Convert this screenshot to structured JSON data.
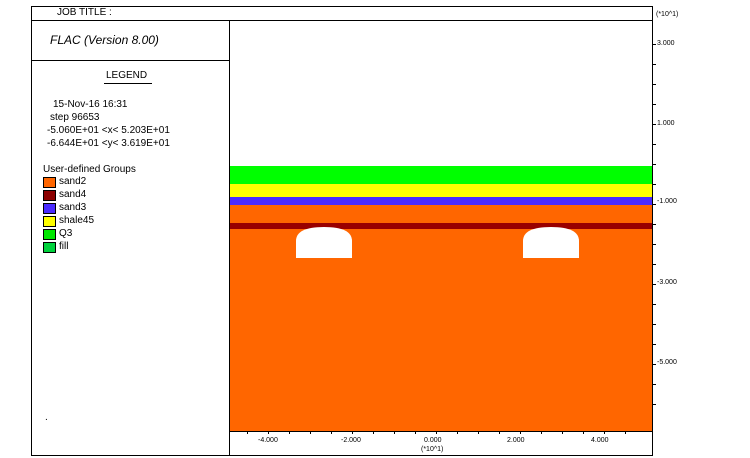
{
  "header": {
    "job_title_label": "JOB TITLE :",
    "units_top": "(*10^1)"
  },
  "program": {
    "title": "FLAC (Version 8.00)"
  },
  "legend": {
    "heading": "LEGEND",
    "date_time": "15-Nov-16  16:31",
    "step": "step    96653",
    "x_range": "-5.060E+01 <x<  5.203E+01",
    "y_range": "-6.644E+01 <y<  3.619E+01",
    "groups_heading": "User-defined Groups",
    "groups": [
      {
        "name": "sand2",
        "color": "#ff6600"
      },
      {
        "name": "sand4",
        "color": "#8b0000"
      },
      {
        "name": "sand3",
        "color": "#4a2bff"
      },
      {
        "name": "shale45",
        "color": "#ffff00"
      },
      {
        "name": "Q3",
        "color": "#00e600"
      },
      {
        "name": "fill",
        "color": "#00d23c"
      }
    ],
    "footer_mark": "."
  },
  "axes": {
    "y_ticks": [
      "3.000",
      "1.000",
      "-1.000",
      "-3.000",
      "-5.000"
    ],
    "x_ticks": [
      "-4.000",
      "-2.000",
      "0.000",
      "2.000",
      "4.000"
    ],
    "x_units": "(*10^1)"
  },
  "layers": {
    "q3_color": "#00ff00",
    "shale45_color": "#ffff00",
    "sand3_color": "#4a2bff",
    "sand4_color": "#990000",
    "sand2_color": "#ff6600",
    "background": "#ffffff"
  }
}
